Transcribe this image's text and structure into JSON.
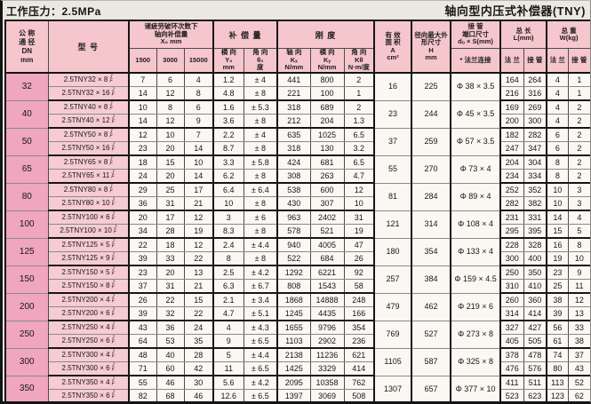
{
  "page": {
    "title_left": "工作压力：2.5MPa",
    "title_right": "轴向型内压式补偿器(TNY)"
  },
  "header": {
    "dn": "公 称\n通 径\nDN\nmm",
    "model": "型    号",
    "x0_group": "诸疲劳破环次数下\n轴向补偿量\nX₀   mm",
    "x0_cols": [
      "1500",
      "3000",
      "15000"
    ],
    "comp_group": "补 偿 量",
    "comp_lateral": "横 向\nY₀\nmm",
    "comp_angular": "角 向\nθ₀\n度",
    "stiff_group": "刚  度",
    "stiff_axial": "轴 向\nKₓ\nN/mm",
    "stiff_lateral": "横 向\nKᵧ\nN/mm",
    "stiff_angular": "角 向\nKθ\nN·m/度",
    "area": "有 效\n面 积\nA\ncm²",
    "radial": "径向最大外\n形尺寸\nH\nmm",
    "pipe_group": "接 管\n端口尺寸\ndₒ × S(mm)",
    "pipe_sub": "* 法兰连接",
    "length_group": "总  长\nL(mm)",
    "weight_group": "总  重\nW(kg)",
    "flange": "法 兰",
    "pipe": "接 管",
    "model_suffix": [
      "J",
      "F"
    ]
  },
  "rows": [
    {
      "dn": "32",
      "model": "2.5TNY32 × 8",
      "x1500": "7",
      "x3000": "6",
      "x15000": "4",
      "y0": "1.2",
      "th": "± 4",
      "kx": "441",
      "ky": "800",
      "kt": "2",
      "a": "16",
      "h": "225",
      "pipe": "Φ 38 × 3.5",
      "lf": "164",
      "lp": "264",
      "wf": "4",
      "wp": "1"
    },
    {
      "model": "2.5TNY32 × 16",
      "x1500": "14",
      "x3000": "12",
      "x15000": "8",
      "y0": "4.8",
      "th": "± 8",
      "kx": "221",
      "ky": "100",
      "kt": "1",
      "lf": "216",
      "lp": "316",
      "wf": "4",
      "wp": "1"
    },
    {
      "dn": "40",
      "model": "2.5TNY40 × 8",
      "x1500": "10",
      "x3000": "8",
      "x15000": "6",
      "y0": "1.6",
      "th": "± 5.3",
      "kx": "318",
      "ky": "689",
      "kt": "2",
      "a": "23",
      "h": "244",
      "pipe": "Φ 45 × 3.5",
      "lf": "169",
      "lp": "269",
      "wf": "4",
      "wp": "2"
    },
    {
      "model": "2.5TNY40 × 12",
      "x1500": "14",
      "x3000": "12",
      "x15000": "9",
      "y0": "3.6",
      "th": "± 8",
      "kx": "212",
      "ky": "204",
      "kt": "1.3",
      "lf": "200",
      "lp": "300",
      "wf": "4",
      "wp": "2"
    },
    {
      "dn": "50",
      "model": "2.5TNY50 × 8",
      "x1500": "12",
      "x3000": "10",
      "x15000": "7",
      "y0": "2.2",
      "th": "± 4",
      "kx": "635",
      "ky": "1025",
      "kt": "6.5",
      "a": "37",
      "h": "259",
      "pipe": "Φ 57 × 3.5",
      "lf": "182",
      "lp": "282",
      "wf": "6",
      "wp": "2"
    },
    {
      "model": "2.5TNY50 × 16",
      "x1500": "23",
      "x3000": "20",
      "x15000": "14",
      "y0": "8.7",
      "th": "± 8",
      "kx": "318",
      "ky": "130",
      "kt": "3.2",
      "lf": "247",
      "lp": "347",
      "wf": "6",
      "wp": "2"
    },
    {
      "dn": "65",
      "model": "2.5TNY65 × 8",
      "x1500": "18",
      "x3000": "15",
      "x15000": "10",
      "y0": "3.3",
      "th": "± 5.8",
      "kx": "424",
      "ky": "681",
      "kt": "6.5",
      "a": "55",
      "h": "270",
      "pipe": "Φ 73 × 4",
      "lf": "204",
      "lp": "304",
      "wf": "8",
      "wp": "2"
    },
    {
      "model": "2.5TNY65 × 11",
      "x1500": "24",
      "x3000": "20",
      "x15000": "14",
      "y0": "6.2",
      "th": "± 8",
      "kx": "308",
      "ky": "263",
      "kt": "4.7",
      "lf": "234",
      "lp": "334",
      "wf": "8",
      "wp": "2"
    },
    {
      "dn": "80",
      "model": "2.5TNY80 × 8",
      "x1500": "29",
      "x3000": "25",
      "x15000": "17",
      "y0": "6.4",
      "th": "± 6.4",
      "kx": "538",
      "ky": "600",
      "kt": "12",
      "a": "81",
      "h": "284",
      "pipe": "Φ 89 × 4",
      "lf": "252",
      "lp": "352",
      "wf": "10",
      "wp": "3"
    },
    {
      "model": "2.5TNY80 × 10",
      "x1500": "36",
      "x3000": "31",
      "x15000": "21",
      "y0": "10",
      "th": "± 8",
      "kx": "430",
      "ky": "307",
      "kt": "10",
      "lf": "282",
      "lp": "382",
      "wf": "10",
      "wp": "3"
    },
    {
      "dn": "100",
      "model": "2.5TNY100 × 6",
      "x1500": "20",
      "x3000": "17",
      "x15000": "12",
      "y0": "3",
      "th": "± 6",
      "kx": "963",
      "ky": "2402",
      "kt": "31",
      "a": "121",
      "h": "314",
      "pipe": "Φ 108 × 4",
      "lf": "231",
      "lp": "331",
      "wf": "14",
      "wp": "4"
    },
    {
      "model": "2.5TNY100 × 10",
      "x1500": "34",
      "x3000": "28",
      "x15000": "19",
      "y0": "8.3",
      "th": "± 8",
      "kx": "578",
      "ky": "521",
      "kt": "19",
      "lf": "295",
      "lp": "395",
      "wf": "15",
      "wp": "5"
    },
    {
      "dn": "125",
      "model": "2.5TNY125 × 5",
      "x1500": "22",
      "x3000": "18",
      "x15000": "12",
      "y0": "2.4",
      "th": "± 4.4",
      "kx": "940",
      "ky": "4005",
      "kt": "47",
      "a": "180",
      "h": "354",
      "pipe": "Φ 133 × 4",
      "lf": "228",
      "lp": "328",
      "wf": "16",
      "wp": "8"
    },
    {
      "model": "2.5TNY125 × 9",
      "x1500": "39",
      "x3000": "33",
      "x15000": "22",
      "y0": "8",
      "th": "± 8",
      "kx": "522",
      "ky": "684",
      "kt": "26",
      "lf": "300",
      "lp": "400",
      "wf": "19",
      "wp": "10"
    },
    {
      "dn": "150",
      "model": "2.5TNY150 × 5",
      "x1500": "23",
      "x3000": "20",
      "x15000": "13",
      "y0": "2.5",
      "th": "± 4.2",
      "kx": "1292",
      "ky": "6221",
      "kt": "92",
      "a": "257",
      "h": "384",
      "pipe": "Φ 159 × 4.5",
      "lf": "250",
      "lp": "350",
      "wf": "23",
      "wp": "9"
    },
    {
      "model": "2.5TNY150 × 8",
      "x1500": "37",
      "x3000": "31",
      "x15000": "21",
      "y0": "6.3",
      "th": "± 6.7",
      "kx": "808",
      "ky": "1543",
      "kt": "58",
      "lf": "310",
      "lp": "410",
      "wf": "25",
      "wp": "11"
    },
    {
      "dn": "200",
      "model": "2.5TNY200 × 4",
      "x1500": "26",
      "x3000": "22",
      "x15000": "15",
      "y0": "2.1",
      "th": "± 3.4",
      "kx": "1868",
      "ky": "14888",
      "kt": "248",
      "a": "479",
      "h": "462",
      "pipe": "Φ 219 × 6",
      "lf": "260",
      "lp": "360",
      "wf": "38",
      "wp": "12"
    },
    {
      "model": "2.5TNY200 × 6",
      "x1500": "39",
      "x3000": "32",
      "x15000": "22",
      "y0": "4.7",
      "th": "± 5.1",
      "kx": "1245",
      "ky": "4435",
      "kt": "166",
      "lf": "314",
      "lp": "414",
      "wf": "39",
      "wp": "13"
    },
    {
      "dn": "250",
      "model": "2.5TNY250 × 4",
      "x1500": "43",
      "x3000": "36",
      "x15000": "24",
      "y0": "4",
      "th": "± 4.3",
      "kx": "1655",
      "ky": "9796",
      "kt": "354",
      "a": "769",
      "h": "527",
      "pipe": "Φ 273 × 8",
      "lf": "327",
      "lp": "427",
      "wf": "56",
      "wp": "33"
    },
    {
      "model": "2.5TNY250 × 6",
      "x1500": "64",
      "x3000": "53",
      "x15000": "35",
      "y0": "9",
      "th": "± 6.5",
      "kx": "1103",
      "ky": "2902",
      "kt": "236",
      "lf": "405",
      "lp": "505",
      "wf": "61",
      "wp": "38"
    },
    {
      "dn": "300",
      "model": "2.5TNY300 × 4",
      "x1500": "48",
      "x3000": "40",
      "x15000": "28",
      "y0": "5",
      "th": "± 4.4",
      "kx": "2138",
      "ky": "11236",
      "kt": "621",
      "a": "1105",
      "h": "587",
      "pipe": "Φ 325 × 8",
      "lf": "378",
      "lp": "478",
      "wf": "74",
      "wp": "37"
    },
    {
      "model": "2.5TNY300 × 6",
      "x1500": "71",
      "x3000": "60",
      "x15000": "42",
      "y0": "11",
      "th": "± 6.5",
      "kx": "1425",
      "ky": "3329",
      "kt": "414",
      "lf": "476",
      "lp": "576",
      "wf": "80",
      "wp": "43"
    },
    {
      "dn": "350",
      "model": "2.5TNY350 × 4",
      "x1500": "55",
      "x3000": "46",
      "x15000": "30",
      "y0": "5.6",
      "th": "± 4.2",
      "kx": "2095",
      "ky": "10358",
      "kt": "762",
      "a": "1307",
      "h": "657",
      "pipe": "Φ 377 × 10",
      "lf": "411",
      "lp": "511",
      "wf": "113",
      "wp": "52"
    },
    {
      "model": "2.5TNY350 × 6",
      "x1500": "82",
      "x3000": "68",
      "x15000": "46",
      "y0": "12.6",
      "th": "± 6.5",
      "kx": "1397",
      "ky": "3069",
      "kt": "508",
      "lf": "523",
      "lp": "623",
      "wf": "123",
      "wp": "62"
    }
  ]
}
